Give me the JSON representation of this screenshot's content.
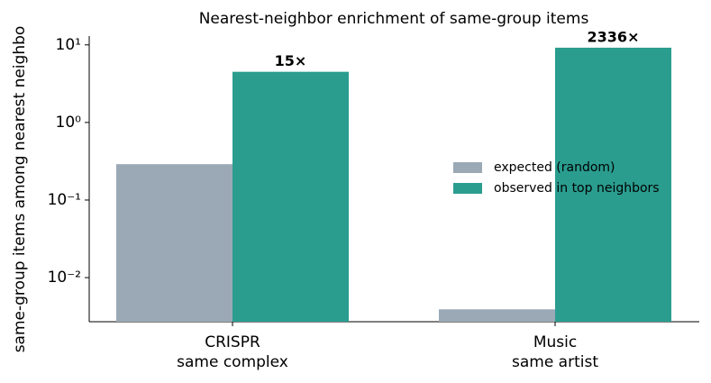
{
  "chart_data": {
    "type": "bar",
    "title": "Nearest-neighbor enrichment of same-group items",
    "y_label": "same-group items among nearest neighbo",
    "categories": [
      [
        "CRISPR",
        "same complex"
      ],
      [
        "Music",
        "same artist"
      ]
    ],
    "series": [
      {
        "name": "expected (random)",
        "color": "#9aa9b5",
        "values": [
          0.29,
          0.0039
        ]
      },
      {
        "name": "observed in top neighbors",
        "color": "#2a9d8f",
        "values": [
          4.5,
          9.2
        ]
      }
    ],
    "annotations": [
      "15×",
      "2336×"
    ],
    "log_scale": true,
    "ylim": [
      0.0027,
      13
    ],
    "yticks": [
      {
        "value": 10,
        "label": "10¹"
      },
      {
        "value": 1,
        "label": "10⁰"
      },
      {
        "value": 0.1,
        "label": "10⁻¹"
      },
      {
        "value": 0.01,
        "label": "10⁻²"
      }
    ],
    "legend": "right"
  }
}
